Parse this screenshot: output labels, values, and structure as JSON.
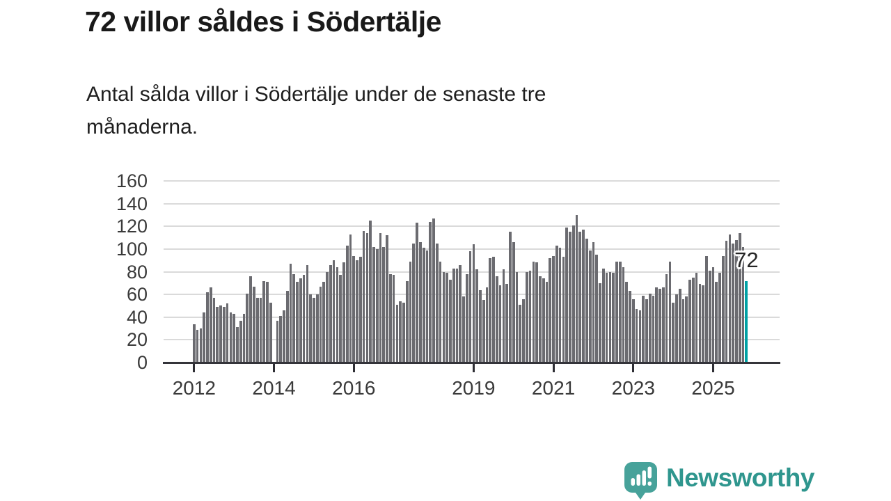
{
  "header": {
    "title": "72 villor såldes i Södertälje",
    "subtitle_lines": [
      "Antal sålda villor i Södertälje under de senaste tre",
      "månaderna."
    ]
  },
  "chart_data": {
    "type": "bar",
    "title": "72 villor såldes i Södertälje",
    "subtitle": "Antal sålda villor i Södertälje under de senaste tre månaderna.",
    "x_unit": "month",
    "x_range": [
      "2012-01",
      "2025-11"
    ],
    "ylim": [
      0,
      160
    ],
    "yticks": [
      0,
      20,
      40,
      60,
      80,
      100,
      120,
      140,
      160
    ],
    "grid": "horizontal",
    "bar_color": "#6b6b70",
    "highlight_color": "#00a1a4",
    "xticks": [
      {
        "label": "2012",
        "index": 0
      },
      {
        "label": "2014",
        "index": 24
      },
      {
        "label": "2016",
        "index": 48
      },
      {
        "label": "2019",
        "index": 84
      },
      {
        "label": "2021",
        "index": 108
      },
      {
        "label": "2023",
        "index": 132
      },
      {
        "label": "2025",
        "index": 156
      }
    ],
    "values": [
      34,
      29,
      30,
      44,
      62,
      66,
      57,
      49,
      50,
      49,
      52,
      44,
      43,
      31,
      37,
      43,
      61,
      76,
      67,
      57,
      57,
      72,
      71,
      53,
      null,
      37,
      41,
      46,
      63,
      87,
      78,
      71,
      74,
      77,
      86,
      60,
      57,
      60,
      67,
      71,
      80,
      86,
      90,
      84,
      77,
      88,
      103,
      113,
      94,
      90,
      93,
      116,
      114,
      125,
      102,
      100,
      114,
      102,
      112,
      78,
      77,
      51,
      54,
      53,
      72,
      89,
      105,
      123,
      106,
      101,
      99,
      124,
      127,
      105,
      89,
      80,
      79,
      73,
      83,
      83,
      86,
      58,
      78,
      98,
      104,
      82,
      64,
      55,
      66,
      92,
      93,
      76,
      68,
      82,
      69,
      115,
      106,
      80,
      51,
      56,
      80,
      81,
      89,
      88,
      76,
      74,
      71,
      92,
      94,
      103,
      101,
      93,
      119,
      115,
      121,
      130,
      115,
      117,
      109,
      99,
      106,
      95,
      70,
      83,
      79,
      80,
      79,
      89,
      89,
      84,
      71,
      63,
      56,
      47,
      46,
      59,
      56,
      61,
      59,
      66,
      65,
      66,
      78,
      89,
      53,
      60,
      65,
      56,
      58,
      73,
      75,
      79,
      69,
      68,
      94,
      81,
      84,
      71,
      79,
      94,
      107,
      113,
      105,
      108,
      114,
      102,
      72
    ],
    "highlight": {
      "index": 166,
      "value": 72,
      "label": "72"
    }
  },
  "branding": {
    "name": "Newsworthy",
    "icon": "newsworthy-speech-bubble-bar-chart-icon",
    "text_color": "#2f968e",
    "icon_color": "#47a29a"
  }
}
